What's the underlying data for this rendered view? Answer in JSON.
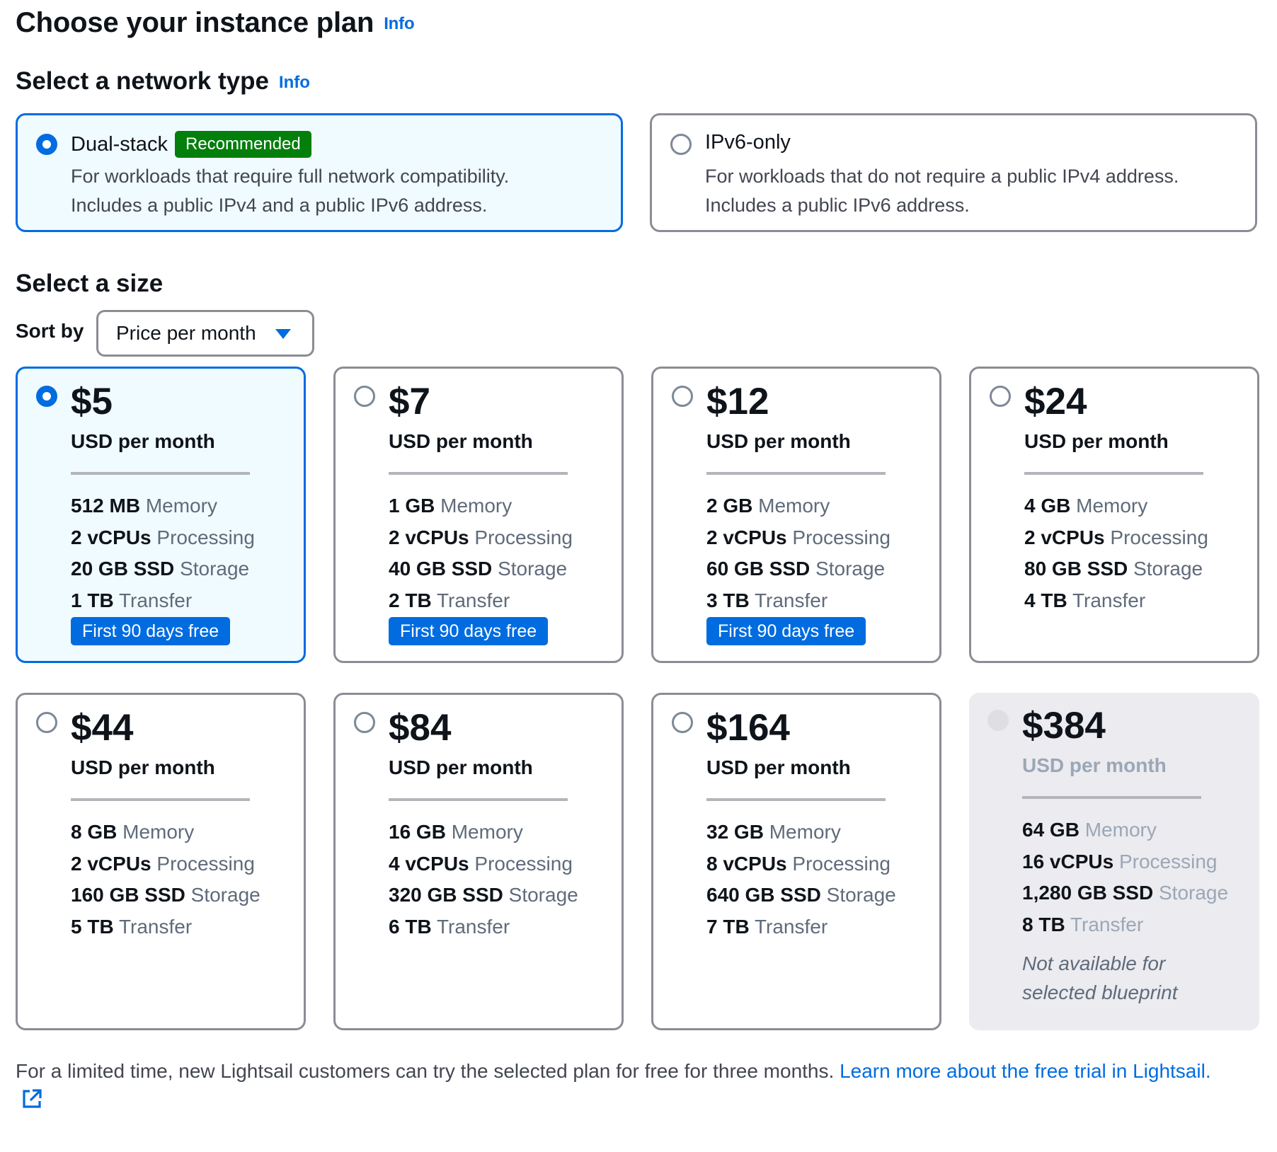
{
  "header": {
    "title": "Choose your instance plan",
    "info": "Info"
  },
  "network": {
    "title": "Select a network type",
    "info": "Info",
    "options": [
      {
        "label": "Dual-stack",
        "badge": "Recommended",
        "desc1": "For workloads that require full network compatibility.",
        "desc2": "Includes a public IPv4 and a public IPv6 address.",
        "selected": true
      },
      {
        "label": "IPv6-only",
        "desc1": "For workloads that do not require a public IPv4 address.",
        "desc2": "Includes a public IPv6 address.",
        "selected": false
      }
    ]
  },
  "size": {
    "title": "Select a size",
    "sort_label": "Sort by",
    "sort_value": "Price per month",
    "per_month": "USD per month",
    "spec_labels": {
      "memory": "Memory",
      "processing": "Processing",
      "storage": "Storage",
      "transfer": "Transfer"
    },
    "free_badge": "First 90 days free",
    "plans": [
      {
        "price": "$5",
        "memory": "512 MB",
        "cpu": "2 vCPUs",
        "storage": "20 GB SSD",
        "transfer": "1 TB",
        "free": true,
        "selected": true
      },
      {
        "price": "$7",
        "memory": "1 GB",
        "cpu": "2 vCPUs",
        "storage": "40 GB SSD",
        "transfer": "2 TB",
        "free": true
      },
      {
        "price": "$12",
        "memory": "2 GB",
        "cpu": "2 vCPUs",
        "storage": "60 GB SSD",
        "transfer": "3 TB",
        "free": true
      },
      {
        "price": "$24",
        "memory": "4 GB",
        "cpu": "2 vCPUs",
        "storage": "80 GB SSD",
        "transfer": "4 TB"
      },
      {
        "price": "$44",
        "memory": "8 GB",
        "cpu": "2 vCPUs",
        "storage": "160 GB SSD",
        "transfer": "5 TB"
      },
      {
        "price": "$84",
        "memory": "16 GB",
        "cpu": "4 vCPUs",
        "storage": "320 GB SSD",
        "transfer": "6 TB"
      },
      {
        "price": "$164",
        "memory": "32 GB",
        "cpu": "8 vCPUs",
        "storage": "640 GB SSD",
        "transfer": "7 TB"
      },
      {
        "price": "$384",
        "memory": "64 GB",
        "cpu": "16 vCPUs",
        "storage": "1,280 GB SSD",
        "transfer": "8 TB",
        "disabled": true,
        "note1": "Not available for",
        "note2": "selected blueprint"
      }
    ]
  },
  "footer": {
    "text": "For a limited time, new Lightsail customers can try the selected plan for free for three months. ",
    "link": "Learn more about the free trial in Lightsail."
  },
  "icons": {
    "external": "external-link-icon",
    "caret": "caret-down-icon"
  },
  "colors": {
    "accent": "#006ce0",
    "success": "#037f0c",
    "border": "#8c8c94"
  }
}
